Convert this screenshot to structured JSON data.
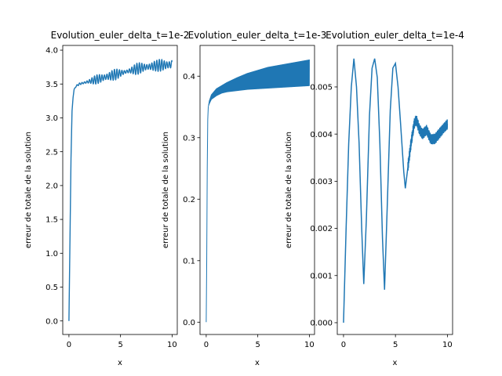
{
  "chart_data": [
    {
      "type": "line",
      "title": "Evolution_euler_delta_t=1e-2",
      "xlabel": "x",
      "ylabel": "erreur de totale de la solution",
      "xlim": [
        -0.6,
        10.5
      ],
      "ylim": [
        -0.2,
        4.07
      ],
      "xticks": [
        "0",
        "5",
        "10"
      ],
      "xtick_values": [
        0,
        5,
        10
      ],
      "yticks": [
        "0.0",
        "0.5",
        "1.0",
        "1.5",
        "2.0",
        "2.5",
        "3.0",
        "3.5",
        "4.0"
      ],
      "ytick_values": [
        0,
        0.5,
        1,
        1.5,
        2,
        2.5,
        3,
        3.5,
        4
      ],
      "grid": false,
      "color": "#1f77b4",
      "series": [
        {
          "values_shape": "rises steeply to about 3.3 by x=0.5, then slowly climbs from about 3.45 to 3.75 with increasing oscillation amplitude",
          "x": [
            0,
            0.1,
            0.2,
            0.3,
            0.4,
            0.5,
            0.7,
            1,
            1.5,
            2,
            2.5,
            3,
            3.5,
            4,
            4.5,
            5,
            5.5,
            6,
            6.5,
            7,
            7.5,
            8,
            8.5,
            9,
            9.5,
            10
          ],
          "y": [
            0,
            1.2,
            2.4,
            3.1,
            3.3,
            3.42,
            3.47,
            3.5,
            3.52,
            3.54,
            3.56,
            3.58,
            3.6,
            3.62,
            3.64,
            3.66,
            3.68,
            3.7,
            3.72,
            3.74,
            3.75,
            3.76,
            3.77,
            3.78,
            3.78,
            3.79
          ],
          "oscillation_amplitude": [
            0,
            0,
            0,
            0,
            0,
            0,
            0.01,
            0.02,
            0.03,
            0.04,
            0.06,
            0.08,
            0.09,
            0.09,
            0.08,
            0.06,
            0.05,
            0.06,
            0.08,
            0.09,
            0.09,
            0.08,
            0.08,
            0.1,
            0.11,
            0.1
          ]
        }
      ]
    },
    {
      "type": "line",
      "title": "Evolution_euler_delta_t=1e-3",
      "xlabel": "x",
      "ylabel": "erreur de totale de la solution",
      "xlim": [
        -0.6,
        10.5
      ],
      "ylim": [
        -0.02,
        0.45
      ],
      "xticks": [
        "0",
        "5",
        "10"
      ],
      "xtick_values": [
        0,
        5,
        10
      ],
      "yticks": [
        "0.0",
        "0.1",
        "0.2",
        "0.3",
        "0.4"
      ],
      "ytick_values": [
        0,
        0.1,
        0.2,
        0.3,
        0.4
      ],
      "grid": false,
      "color": "#1f77b4",
      "series": [
        {
          "x": [
            0,
            0.05,
            0.1,
            0.15,
            0.2,
            0.3,
            0.5,
            1,
            1.5,
            2,
            3,
            4,
            5,
            6,
            7,
            8,
            9,
            10
          ],
          "upper": [
            0,
            0.1,
            0.25,
            0.33,
            0.35,
            0.36,
            0.37,
            0.38,
            0.385,
            0.39,
            0.398,
            0.405,
            0.41,
            0.415,
            0.418,
            0.421,
            0.424,
            0.427
          ],
          "lower": [
            0,
            0.1,
            0.25,
            0.33,
            0.35,
            0.355,
            0.362,
            0.368,
            0.372,
            0.374,
            0.376,
            0.378,
            0.379,
            0.38,
            0.381,
            0.382,
            0.383,
            0.384
          ]
        }
      ]
    },
    {
      "type": "line",
      "title": "Evolution_euler_delta_t=1e-4",
      "xlabel": "x",
      "ylabel": "erreur de totale de la solution",
      "xlim": [
        -0.6,
        10.5
      ],
      "ylim": [
        -0.00025,
        0.00588
      ],
      "xticks": [
        "0",
        "5",
        "10"
      ],
      "xtick_values": [
        0,
        5,
        10
      ],
      "yticks": [
        "0.000",
        "0.001",
        "0.002",
        "0.003",
        "0.004",
        "0.005"
      ],
      "ytick_values": [
        0,
        0.001,
        0.002,
        0.003,
        0.004,
        0.005
      ],
      "grid": false,
      "color": "#1f77b4",
      "series": [
        {
          "x": [
            0,
            0.1,
            0.25,
            0.5,
            0.75,
            1.0,
            1.25,
            1.5,
            1.75,
            1.95,
            2.2,
            2.5,
            2.75,
            3.0,
            3.25,
            3.5,
            3.75,
            3.95,
            4.2,
            4.5,
            4.75,
            5.0,
            5.25,
            5.5,
            5.8,
            5.95,
            6.2,
            6.5,
            6.8,
            7.0,
            7.3,
            7.6,
            8.0,
            8.4,
            8.8,
            9.2,
            9.6,
            10.0
          ],
          "y": [
            0,
            0.0008,
            0.002,
            0.0038,
            0.005,
            0.0056,
            0.005,
            0.0038,
            0.002,
            0.00082,
            0.0022,
            0.0044,
            0.0054,
            0.0056,
            0.0052,
            0.0038,
            0.0018,
            0.0007,
            0.0024,
            0.0045,
            0.0054,
            0.0055,
            0.005,
            0.0042,
            0.0032,
            0.00285,
            0.0033,
            0.0038,
            0.0042,
            0.0043,
            0.0041,
            0.004,
            0.0041,
            0.0039,
            0.0039,
            0.004,
            0.0041,
            0.0042
          ],
          "noise_from_x": 6.2,
          "noise_amplitude": 0.00012
        }
      ]
    }
  ]
}
